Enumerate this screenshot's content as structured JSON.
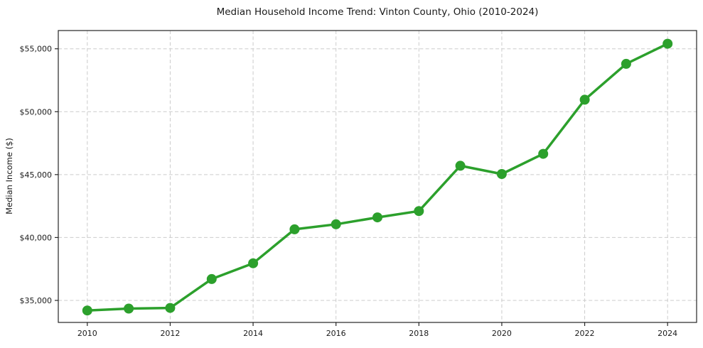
{
  "chart_data": {
    "type": "line",
    "title": "Median Household Income Trend: Vinton County, Ohio (2010-2024)",
    "xlabel": "",
    "ylabel": "Median Income ($)",
    "x": [
      2010,
      2011,
      2012,
      2013,
      2014,
      2015,
      2016,
      2017,
      2018,
      2019,
      2020,
      2021,
      2022,
      2023,
      2024
    ],
    "series": [
      {
        "name": "Median Household Income",
        "values": [
          34200,
          34350,
          34400,
          36700,
          37950,
          40650,
          41050,
          41600,
          42100,
          45700,
          45050,
          46650,
          50950,
          53800,
          55400
        ]
      }
    ],
    "xlim": [
      2009.3,
      2024.7
    ],
    "ylim": [
      33250,
      56450
    ],
    "xticks": [
      2010,
      2012,
      2014,
      2016,
      2018,
      2020,
      2022,
      2024
    ],
    "yticks": [
      35000,
      40000,
      45000,
      50000,
      55000
    ],
    "ytick_format": "$#,###",
    "grid": true,
    "legend": "none",
    "colors": {
      "line": "#2ca02c",
      "marker": "#2ca02c",
      "grid": "#cccccc",
      "spine": "#262626",
      "text": "#1a1a1a",
      "background": "#ffffff"
    },
    "marker": "circle",
    "marker_radius": 7,
    "line_width": 3.5
  }
}
